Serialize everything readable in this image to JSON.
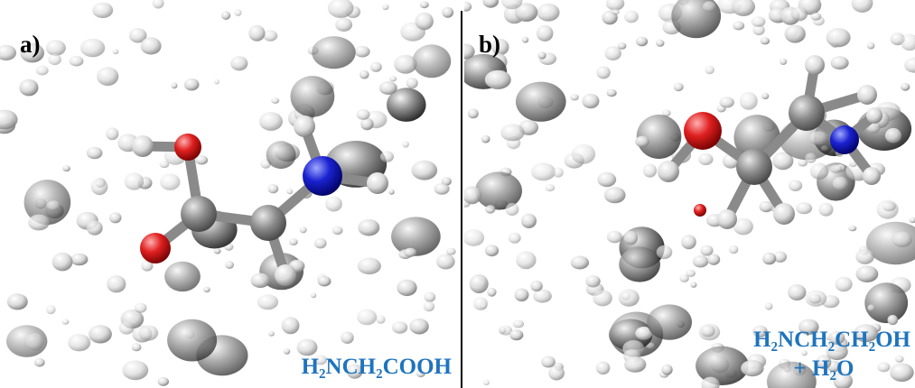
{
  "panels": [
    {
      "label": "a)",
      "formula": "H₂NCH₂COOH"
    },
    {
      "label": "b)",
      "formula": "H₂NCH₂CH₂OH",
      "extra": "+ H₂O"
    }
  ]
}
